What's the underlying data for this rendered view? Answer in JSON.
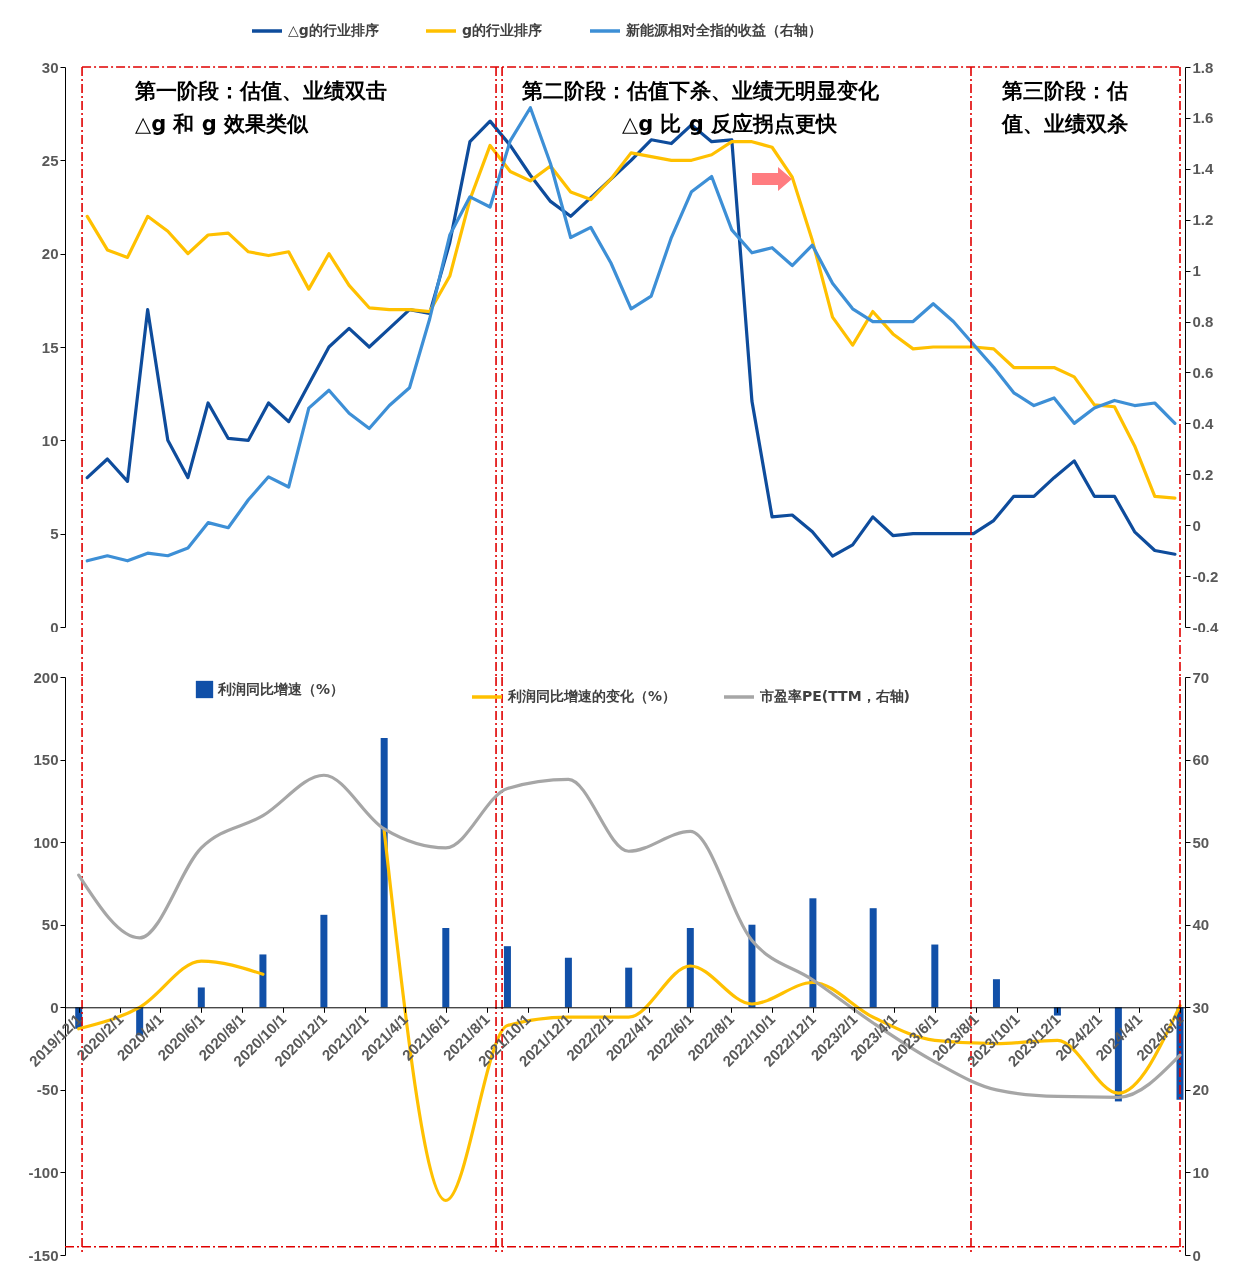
{
  "chart_data": [
    {
      "type": "line",
      "categories": [
        null,
        null,
        null,
        null,
        null,
        null,
        null,
        null,
        null,
        null,
        null,
        null,
        null,
        null,
        null,
        null,
        null,
        null,
        null,
        null,
        null,
        null,
        null,
        null,
        null,
        null,
        null,
        null,
        null,
        null,
        null,
        null,
        null,
        null,
        null,
        null,
        null,
        null,
        null,
        null,
        null,
        null,
        null,
        null,
        null,
        null,
        null,
        null,
        null,
        null,
        null,
        null,
        null,
        null,
        null
      ],
      "ylim": [
        0,
        30
      ],
      "yticks": [
        0,
        5,
        10,
        15,
        20,
        25,
        30
      ],
      "y2lim": [
        -0.4,
        1.8
      ],
      "y2ticks": [
        -0.4,
        -0.2,
        0,
        0.2,
        0.4,
        0.6,
        0.8,
        1,
        1.2,
        1.4,
        1.6,
        1.8
      ],
      "legend": "top",
      "marker": "none",
      "line_style": "solid",
      "grid": false,
      "series": [
        {
          "name": "△g的行业排序",
          "color": "#0e4c9c",
          "values": [
            8.0,
            9.0,
            7.8,
            17.0,
            10.0,
            8.0,
            12.0,
            10.1,
            10.0,
            12.0,
            11.0,
            13.0,
            15.0,
            16.0,
            15.0,
            16.0,
            17.0,
            16.8,
            20.6,
            26.0,
            27.1,
            25.8,
            24.2,
            22.8,
            22.0,
            23.0,
            24.0,
            25.0,
            26.1,
            25.9,
            26.9,
            26.0,
            26.1,
            12.1,
            5.9,
            6.0,
            5.1,
            3.8,
            4.4,
            5.9,
            4.9,
            5.0,
            5.0,
            5.0,
            5.0,
            5.7,
            7.0,
            7.0,
            8.0,
            8.9,
            7.0,
            7.0,
            5.1,
            4.1,
            3.9
          ]
        },
        {
          "name": "g的行业排序",
          "color": "#ffc000",
          "values": [
            22.0,
            20.2,
            19.8,
            22.0,
            21.2,
            20.0,
            21.0,
            21.1,
            20.1,
            19.9,
            20.1,
            18.1,
            20.0,
            18.3,
            17.1,
            17.0,
            17.0,
            16.9,
            18.8,
            22.9,
            25.8,
            24.4,
            23.9,
            24.7,
            23.3,
            22.9,
            24.0,
            25.4,
            25.2,
            25.0,
            25.0,
            25.3,
            26.0,
            26.0,
            25.7,
            24.1,
            20.7,
            16.6,
            15.1,
            16.9,
            15.7,
            14.9,
            15.0,
            15.0,
            15.0,
            14.9,
            13.9,
            13.9,
            13.9,
            13.4,
            11.9,
            11.8,
            9.7,
            7.0,
            6.9
          ]
        },
        {
          "name": "新能源相对全指的收益（右轴）",
          "color": "#3d8fd6",
          "axis": "y2",
          "values": [
            -0.14,
            -0.12,
            -0.14,
            -0.11,
            -0.12,
            -0.09,
            0.01,
            -0.01,
            0.1,
            0.19,
            0.15,
            0.46,
            0.53,
            0.44,
            0.38,
            0.47,
            0.54,
            0.81,
            1.14,
            1.29,
            1.25,
            1.51,
            1.64,
            1.42,
            1.13,
            1.17,
            1.03,
            0.85,
            0.9,
            1.13,
            1.31,
            1.37,
            1.16,
            1.07,
            1.09,
            1.02,
            1.1,
            0.95,
            0.85,
            0.8,
            0.8,
            0.8,
            0.87,
            0.8,
            0.71,
            0.62,
            0.52,
            0.47,
            0.5,
            0.4,
            0.46,
            0.49,
            0.47,
            0.48,
            0.4
          ]
        }
      ],
      "annotations": [
        "第一阶段：估值、业绩双击",
        "△g 和 g 效果类似",
        "第二阶段：估值下杀、业绩无明显变化",
        "△g 比 g 反应拐点更快",
        "第三阶段：估值、业绩双杀"
      ]
    },
    {
      "type": "bar",
      "x": [
        "2019-12",
        "2020-03",
        "2020-06",
        "2020-09",
        "2020-12",
        "2021-03",
        "2021-06",
        "2021-09",
        "2021-12",
        "2022-03",
        "2022-06",
        "2022-09",
        "2022-12",
        "2023-03",
        "2023-06",
        "2023-09",
        "2023-12",
        "2024-03",
        "2024-06"
      ],
      "xlim": [
        "2019-11-18",
        "2024-06-01"
      ],
      "xticks": [
        {
          "value": "2019-12",
          "label": "2019/12/1"
        },
        {
          "value": "2020-02",
          "label": "2020/2/1"
        },
        {
          "value": "2020-04",
          "label": "2020/4/1"
        },
        {
          "value": "2020-06",
          "label": "2020/6/1"
        },
        {
          "value": "2020-08",
          "label": "2020/8/1"
        },
        {
          "value": "2020-10",
          "label": "2020/10/1"
        },
        {
          "value": "2020-12",
          "label": "2020/12/1"
        },
        {
          "value": "2021-02",
          "label": "2021/2/1"
        },
        {
          "value": "2021-04",
          "label": "2021/4/1"
        },
        {
          "value": "2021-06",
          "label": "2021/6/1"
        },
        {
          "value": "2021-08",
          "label": "2021/8/1"
        },
        {
          "value": "2021-10",
          "label": "2021/10/1"
        },
        {
          "value": "2021-12",
          "label": "2021/12/1"
        },
        {
          "value": "2022-02",
          "label": "2022/2/1"
        },
        {
          "value": "2022-04",
          "label": "2022/4/1"
        },
        {
          "value": "2022-06",
          "label": "2022/6/1"
        },
        {
          "value": "2022-08",
          "label": "2022/8/1"
        },
        {
          "value": "2022-10",
          "label": "2022/10/1"
        },
        {
          "value": "2022-12",
          "label": "2022/12/1"
        },
        {
          "value": "2023-02",
          "label": "2023/2/1"
        },
        {
          "value": "2023-04",
          "label": "2023/4/1"
        },
        {
          "value": "2023-06",
          "label": "2023/6/1"
        },
        {
          "value": "2023-08",
          "label": "2023/8/1"
        },
        {
          "value": "2023-10",
          "label": "2023/10/1"
        },
        {
          "value": "2023-12",
          "label": "2023/12/1"
        },
        {
          "value": "2024-02",
          "label": "2024/2/1"
        },
        {
          "value": "2024-04",
          "label": "2024/4/1"
        },
        {
          "value": "2024-06",
          "label": "2024/6/1"
        }
      ],
      "ylim": [
        -150,
        200
      ],
      "yticks": [
        -150,
        -100,
        -50,
        0,
        50,
        100,
        150,
        200
      ],
      "y2lim": [
        0,
        70
      ],
      "y2ticks": [
        0,
        10,
        20,
        30,
        40,
        50,
        60,
        70
      ],
      "legend": "top",
      "marker": "none",
      "line_style": "solid",
      "grid": false,
      "series": [
        {
          "name": "利润同比增速（%）",
          "color": "#1150a8",
          "values": [
            -13,
            -17,
            12,
            32,
            56,
            163,
            48,
            37,
            30,
            24,
            48,
            50,
            66,
            60,
            38,
            17,
            -5,
            -57,
            -56
          ]
        },
        {
          "name": "利润同比增速的变化（%）",
          "color": "#ffc000",
          "type": "line",
          "values": [
            -13,
            0,
            28,
            20,
            null,
            107,
            -117,
            -11,
            -6,
            -6,
            25,
            2,
            15,
            -6,
            -20,
            -22,
            -20,
            -52,
            1
          ]
        },
        {
          "name": "市盈率PE(TTM，右轴)",
          "color": "#a6a6a6",
          "type": "line",
          "axis": "y2",
          "values": [
            46.0,
            38.4,
            49.3,
            53.2,
            58.1,
            51.6,
            49.3,
            56.5,
            57.6,
            48.9,
            51.3,
            38.1,
            33.3,
            28.1,
            23.4,
            20.0,
            19.2,
            19.1,
            24.2
          ]
        }
      ],
      "ref_lines": [
        {
          "axis": "x",
          "value": "2019-12-06",
          "color": "#e00000",
          "line_style": "dashed"
        },
        {
          "axis": "x",
          "value": "2021-08-15",
          "color": "#e00000",
          "line_style": "dashed"
        },
        {
          "axis": "x",
          "value": "2021-08-24",
          "color": "#e00000",
          "line_style": "dashed"
        },
        {
          "axis": "x",
          "value": "2023-07-25",
          "color": "#e00000",
          "line_style": "dashed"
        },
        {
          "axis": "x",
          "value": "2024-06-01",
          "color": "#e00000",
          "line_style": "dashed"
        },
        {
          "axis": "y",
          "value": -145,
          "color": "#e00000",
          "line_style": "dashed"
        }
      ]
    }
  ]
}
